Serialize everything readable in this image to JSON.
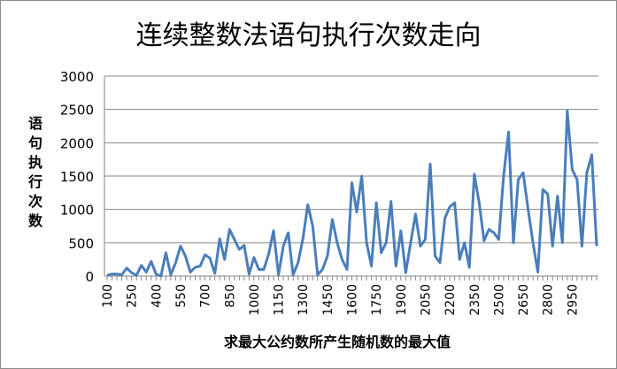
{
  "chart_data": {
    "type": "line",
    "title": "连续整数法语句执行次数走向",
    "xlabel": "求最大公约数所产生随机数的最大值",
    "ylabel": "语句执行次数",
    "ylim": [
      0,
      3000
    ],
    "yticks": [
      "0",
      "500",
      "1000",
      "1500",
      "2000",
      "2500",
      "3000"
    ],
    "x_start": 100,
    "x_step": 30,
    "xtick_labels": [
      "100",
      "250",
      "400",
      "550",
      "700",
      "850",
      "1000",
      "1150",
      "1300",
      "1450",
      "1600",
      "1750",
      "1900",
      "2050",
      "2200",
      "2350",
      "2500",
      "2650",
      "2800",
      "2950"
    ],
    "grid": true,
    "legend": "none",
    "series": [
      {
        "name": "语句执行次数",
        "color": "#4a7ebb",
        "values": [
          10,
          30,
          30,
          20,
          120,
          50,
          10,
          160,
          60,
          220,
          30,
          0,
          350,
          20,
          200,
          450,
          300,
          60,
          130,
          150,
          320,
          270,
          40,
          560,
          250,
          700,
          550,
          400,
          460,
          30,
          280,
          100,
          100,
          330,
          680,
          20,
          450,
          650,
          20,
          200,
          560,
          1070,
          750,
          20,
          100,
          300,
          850,
          500,
          250,
          100,
          1400,
          960,
          1500,
          500,
          150,
          1100,
          350,
          500,
          1120,
          150,
          680,
          50,
          500,
          930,
          450,
          550,
          1680,
          300,
          200,
          870,
          1040,
          1100,
          250,
          500,
          130,
          1530,
          1100,
          530,
          700,
          650,
          550,
          1500,
          2160,
          500,
          1450,
          1550,
          1000,
          500,
          60,
          1300,
          1230,
          450,
          1200,
          500,
          2480,
          1600,
          1450,
          450,
          1550,
          1820,
          450
        ]
      }
    ]
  }
}
